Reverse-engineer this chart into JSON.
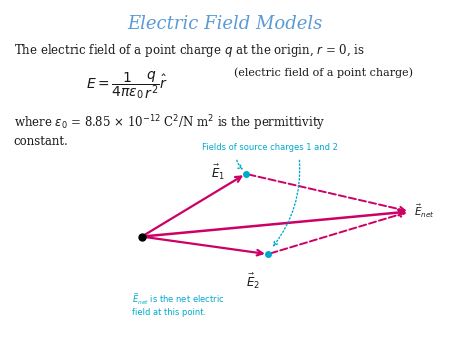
{
  "title": "Electric Field Models",
  "title_color": "#5b9bd5",
  "title_fontsize": 13,
  "bg_color": "#ffffff",
  "text_color": "#1a1a1a",
  "pink_color": "#cc0066",
  "cyan_color": "#00aacc",
  "body_fontsize": 8.5,
  "formula_fontsize": 10,
  "diagram_label": "Fields of source charges 1 and 2",
  "e1_label": "$\\vec{E}_1$",
  "e2_label": "$\\vec{E}_2$",
  "enet_label": "$\\vec{E}_{net}$",
  "enet_note": "$\\vec{E}_{net}$ is the net electric\nfield at this point."
}
